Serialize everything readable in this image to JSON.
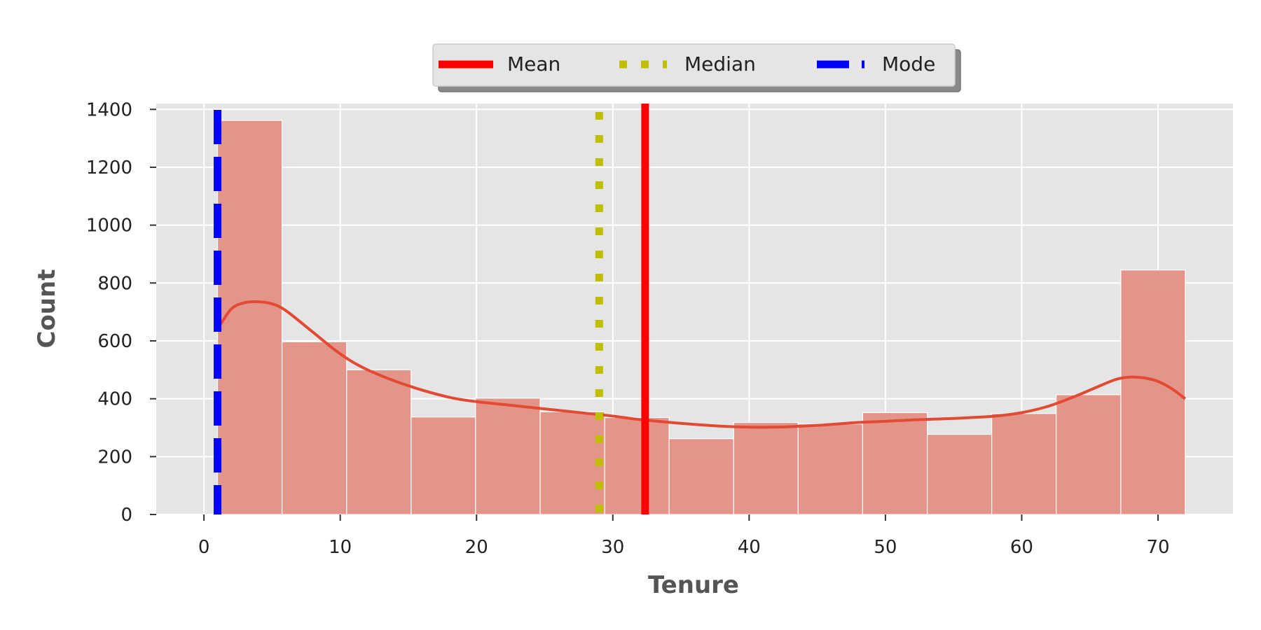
{
  "chart_data": {
    "type": "bar",
    "subtype": "histogram",
    "xlabel": "Tenure",
    "ylabel": "Count",
    "xlim": [
      -3.5,
      75.5
    ],
    "ylim": [
      0,
      1420
    ],
    "x_ticks": [
      0,
      10,
      20,
      30,
      40,
      50,
      60,
      70
    ],
    "y_ticks": [
      0,
      200,
      400,
      600,
      800,
      1000,
      1200,
      1400
    ],
    "grid": true,
    "legend_placement": "top-center",
    "bins": [
      {
        "start": 1.0,
        "end": 5.73,
        "count": 1362
      },
      {
        "start": 5.73,
        "end": 10.47,
        "count": 597
      },
      {
        "start": 10.47,
        "end": 15.2,
        "count": 500
      },
      {
        "start": 15.2,
        "end": 19.93,
        "count": 337
      },
      {
        "start": 19.93,
        "end": 24.67,
        "count": 402
      },
      {
        "start": 24.67,
        "end": 29.4,
        "count": 355
      },
      {
        "start": 29.4,
        "end": 34.13,
        "count": 335
      },
      {
        "start": 34.13,
        "end": 38.87,
        "count": 262
      },
      {
        "start": 38.87,
        "end": 43.6,
        "count": 318
      },
      {
        "start": 43.6,
        "end": 48.33,
        "count": 313
      },
      {
        "start": 48.33,
        "end": 53.07,
        "count": 352
      },
      {
        "start": 53.07,
        "end": 57.8,
        "count": 277
      },
      {
        "start": 57.8,
        "end": 62.53,
        "count": 349
      },
      {
        "start": 62.53,
        "end": 67.27,
        "count": 414
      },
      {
        "start": 67.27,
        "end": 72.0,
        "count": 845
      }
    ],
    "kde": {
      "x": [
        1,
        2,
        3,
        4,
        5,
        6,
        8,
        10,
        12,
        15,
        18,
        20,
        22,
        25,
        28,
        30,
        32,
        35,
        38,
        40,
        42,
        45,
        48,
        50,
        52,
        55,
        58,
        60,
        62,
        64,
        66,
        67,
        68,
        69,
        70,
        71,
        72
      ],
      "y": [
        640,
        710,
        732,
        735,
        728,
        705,
        630,
        555,
        500,
        445,
        405,
        390,
        380,
        365,
        350,
        340,
        328,
        315,
        305,
        302,
        302,
        308,
        318,
        322,
        327,
        332,
        340,
        352,
        375,
        410,
        450,
        468,
        475,
        472,
        460,
        435,
        400
      ]
    },
    "reference_lines": [
      {
        "name": "Mean",
        "x": 32.37,
        "color": "#ff0000",
        "style": "solid"
      },
      {
        "name": "Median",
        "x": 29,
        "color": "#bfbf00",
        "style": "dotted"
      },
      {
        "name": "Mode",
        "x": 1,
        "color": "#0000ff",
        "style": "dashed"
      }
    ],
    "colors": {
      "bar_fill": "#e3958a",
      "kde_line": "#e24a33",
      "plot_background": "#e5e5e5",
      "grid": "#ffffff"
    }
  }
}
